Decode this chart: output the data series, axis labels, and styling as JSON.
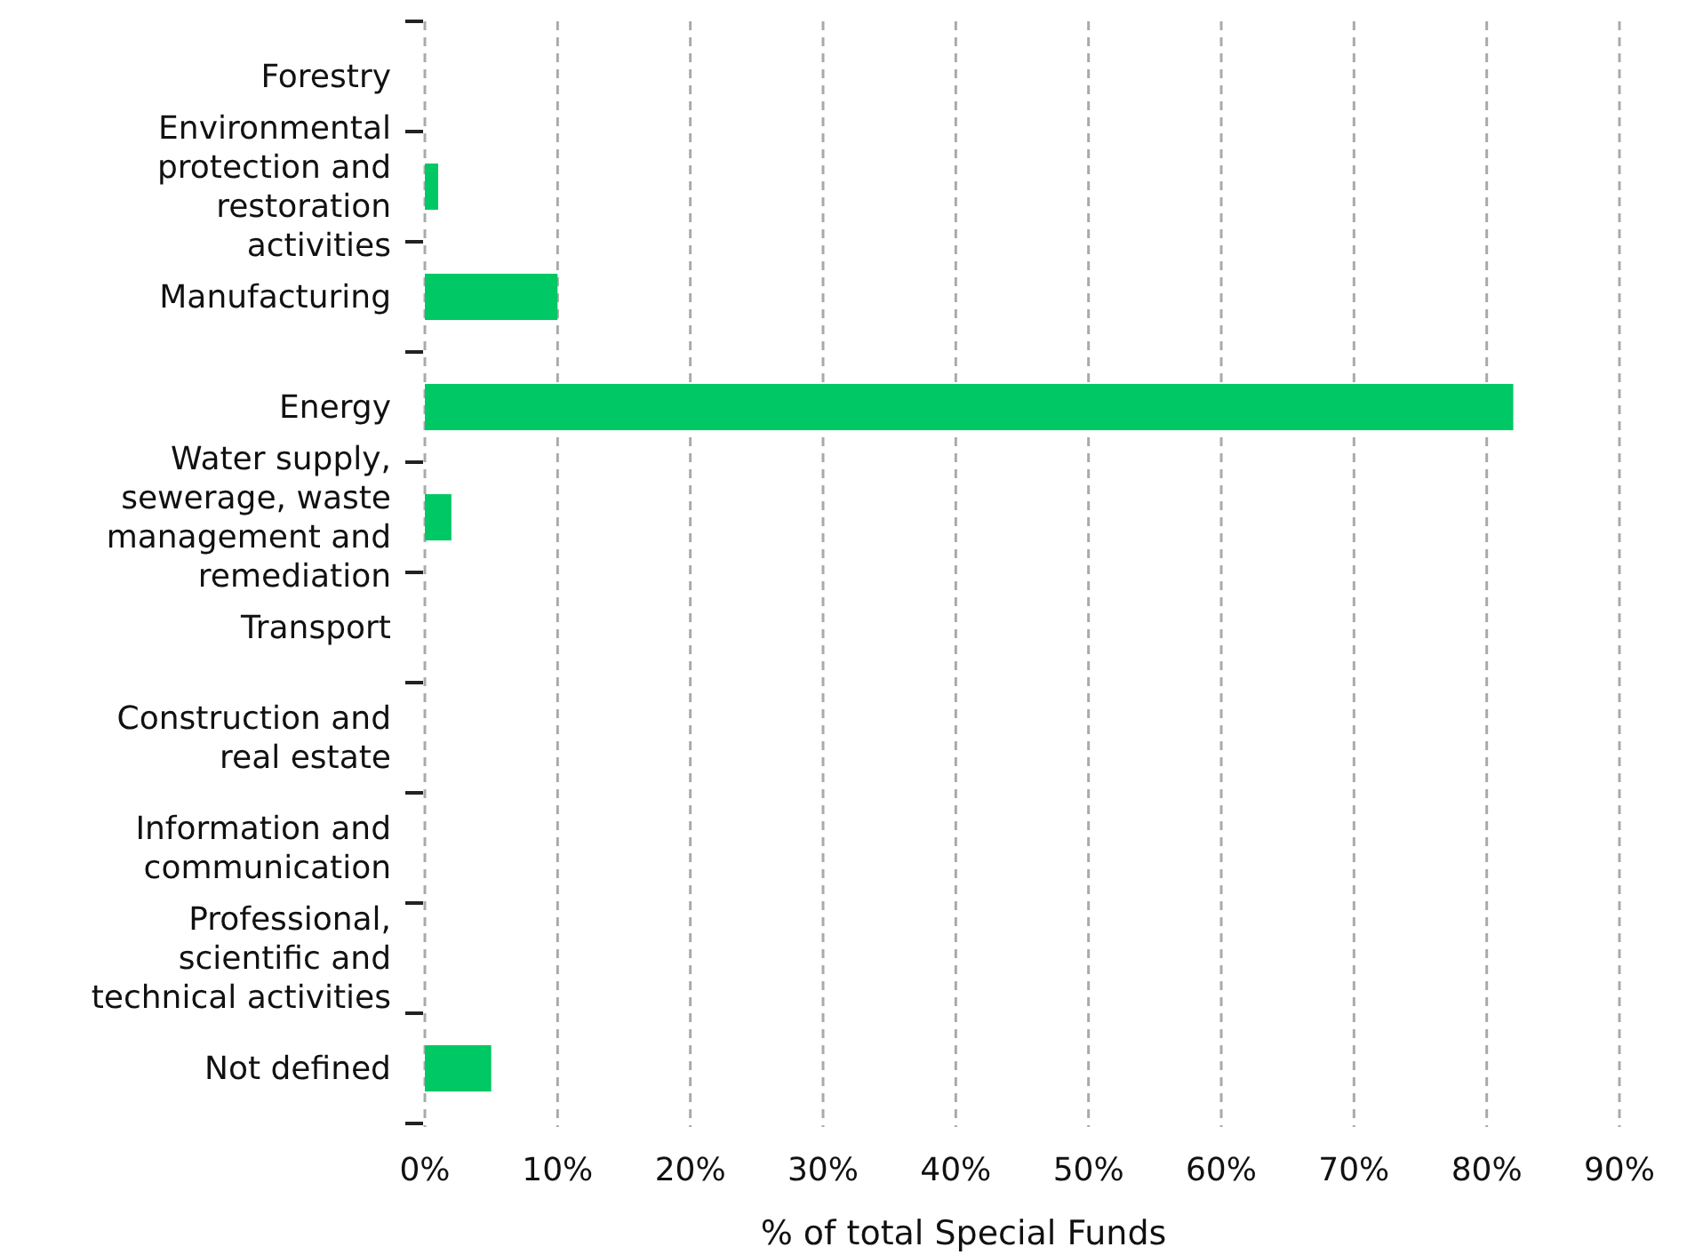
{
  "chart_data": {
    "type": "bar",
    "orientation": "horizontal",
    "xlabel": "% of total Special Funds",
    "categories": [
      "Forestry",
      "Environmental protection and restoration activities",
      "Manufacturing",
      "Energy",
      "Water supply, sewerage, waste management and remediation",
      "Transport",
      "Construction and real estate",
      "Information and communication",
      "Professional, scientific and technical activities",
      "Not defined"
    ],
    "values": [
      0,
      1,
      10,
      82,
      2,
      0,
      0,
      0,
      0,
      5
    ],
    "color": "#00c864",
    "xlim": [
      0,
      90
    ],
    "xticks": [
      {
        "value": 0,
        "label": "0%"
      },
      {
        "value": 10,
        "label": "10%"
      },
      {
        "value": 20,
        "label": "20%"
      },
      {
        "value": 30,
        "label": "30%"
      },
      {
        "value": 40,
        "label": "40%"
      },
      {
        "value": 50,
        "label": "50%"
      },
      {
        "value": 60,
        "label": "60%"
      },
      {
        "value": 70,
        "label": "70%"
      },
      {
        "value": 80,
        "label": "80%"
      },
      {
        "value": 90,
        "label": "90%"
      }
    ],
    "grid": "x"
  }
}
